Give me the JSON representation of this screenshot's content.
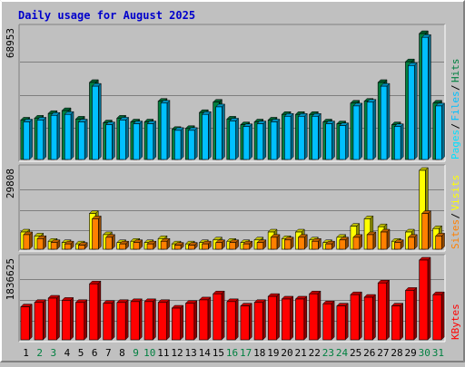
{
  "title": "Daily usage for August 2025",
  "colors": {
    "background": "#c0c0c0",
    "panel": "#c0c0c0",
    "grid": "#7f7f7f",
    "title": "#0000cc",
    "hits": "#008040",
    "files": "#00c0ff",
    "pages": "#00e0ff",
    "sites": "#ff8000",
    "visits": "#ffff00",
    "kbytes": "#ff0000",
    "weekend": "#008040",
    "weekday": "#000000"
  },
  "chart_data": [
    {
      "type": "bar",
      "name": "hits-files-pages",
      "max_label": "68953",
      "ylim": [
        0,
        68953
      ],
      "legend": [
        {
          "text": "Pages",
          "color_key": "pages"
        },
        {
          "text": "Files",
          "color_key": "files"
        },
        {
          "text": "Hits",
          "color_key": "hits"
        }
      ],
      "series": [
        {
          "name": "Hits",
          "values": [
            21000,
            22000,
            24500,
            26000,
            21500,
            41000,
            19500,
            22000,
            20000,
            20000,
            31000,
            16000,
            16500,
            25000,
            30500,
            21500,
            18500,
            20000,
            21000,
            24000,
            24000,
            24000,
            20000,
            19000,
            30000,
            31000,
            41000,
            18500,
            52000,
            67000,
            30000
          ]
        },
        {
          "name": "Files",
          "values": [
            20000,
            21000,
            23500,
            24000,
            20000,
            39000,
            18500,
            21000,
            19000,
            19000,
            30000,
            15500,
            15500,
            24000,
            28000,
            20500,
            17500,
            19000,
            20000,
            23000,
            23000,
            23000,
            19000,
            18000,
            28500,
            30500,
            39000,
            17500,
            50000,
            65000,
            28500
          ]
        }
      ]
    },
    {
      "type": "bar",
      "name": "sites-visits",
      "max_label": "29808",
      "ylim": [
        0,
        29808
      ],
      "legend": [
        {
          "text": "Sites",
          "color_key": "sites"
        },
        {
          "text": "Visits",
          "color_key": "visits"
        }
      ],
      "series": [
        {
          "name": "Visits",
          "values": [
            6500,
            5000,
            3000,
            2500,
            2000,
            13500,
            5500,
            2500,
            3000,
            2500,
            4000,
            2000,
            2000,
            2500,
            3500,
            3000,
            2500,
            3500,
            6500,
            4000,
            6500,
            3500,
            2500,
            4500,
            8700,
            11500,
            8500,
            3000,
            6500,
            29808,
            7800
          ]
        },
        {
          "name": "Sites",
          "values": [
            5500,
            4000,
            2500,
            2000,
            1500,
            11500,
            4500,
            2000,
            2500,
            2000,
            3000,
            1500,
            1500,
            2000,
            2500,
            2500,
            2000,
            2500,
            4500,
            3500,
            4500,
            3000,
            2000,
            3500,
            4500,
            5500,
            6500,
            2500,
            4500,
            13500,
            5000
          ]
        }
      ]
    },
    {
      "type": "bar",
      "name": "kbytes",
      "max_label": "1836625",
      "ylim": [
        0,
        1836625
      ],
      "legend": [
        {
          "text": "KBytes",
          "color_key": "kbytes"
        }
      ],
      "series": [
        {
          "name": "KBytes",
          "values": [
            760000,
            860000,
            960000,
            910000,
            860000,
            1290000,
            840000,
            860000,
            880000,
            880000,
            860000,
            730000,
            840000,
            920000,
            1060000,
            880000,
            780000,
            860000,
            1000000,
            940000,
            940000,
            1060000,
            830000,
            780000,
            1040000,
            980000,
            1310000,
            780000,
            1140000,
            1836625,
            1040000
          ]
        }
      ]
    }
  ],
  "days": [
    {
      "label": "1",
      "weekend": false
    },
    {
      "label": "2",
      "weekend": true
    },
    {
      "label": "3",
      "weekend": true
    },
    {
      "label": "4",
      "weekend": false
    },
    {
      "label": "5",
      "weekend": false
    },
    {
      "label": "6",
      "weekend": false
    },
    {
      "label": "7",
      "weekend": false
    },
    {
      "label": "8",
      "weekend": false
    },
    {
      "label": "9",
      "weekend": true
    },
    {
      "label": "10",
      "weekend": true
    },
    {
      "label": "11",
      "weekend": false
    },
    {
      "label": "12",
      "weekend": false
    },
    {
      "label": "13",
      "weekend": false
    },
    {
      "label": "14",
      "weekend": false
    },
    {
      "label": "15",
      "weekend": false
    },
    {
      "label": "16",
      "weekend": true
    },
    {
      "label": "17",
      "weekend": true
    },
    {
      "label": "18",
      "weekend": false
    },
    {
      "label": "19",
      "weekend": false
    },
    {
      "label": "20",
      "weekend": false
    },
    {
      "label": "21",
      "weekend": false
    },
    {
      "label": "22",
      "weekend": false
    },
    {
      "label": "23",
      "weekend": true
    },
    {
      "label": "24",
      "weekend": true
    },
    {
      "label": "25",
      "weekend": false
    },
    {
      "label": "26",
      "weekend": false
    },
    {
      "label": "27",
      "weekend": false
    },
    {
      "label": "28",
      "weekend": false
    },
    {
      "label": "29",
      "weekend": false
    },
    {
      "label": "30",
      "weekend": true
    },
    {
      "label": "31",
      "weekend": true
    }
  ]
}
